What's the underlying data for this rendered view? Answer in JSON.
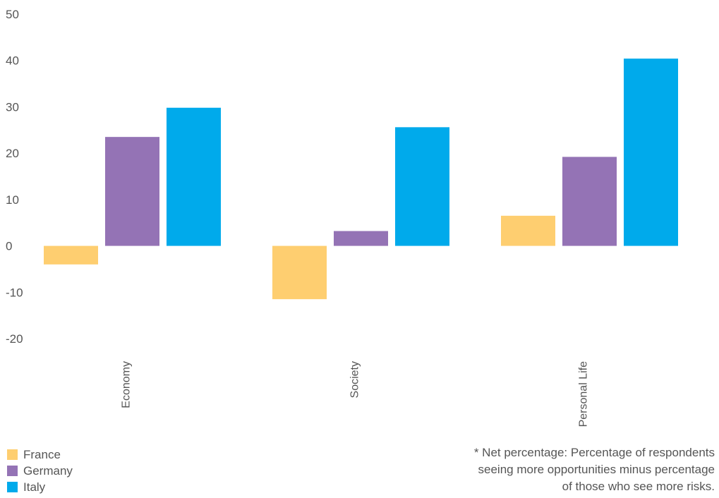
{
  "chart_data": {
    "type": "bar",
    "categories": [
      "Economy",
      "Society",
      "Personal Life"
    ],
    "series": [
      {
        "name": "France",
        "values": [
          -4,
          -11.5,
          6.5
        ],
        "color": "#FECE70"
      },
      {
        "name": "Germany",
        "values": [
          23.5,
          3.2,
          19.2
        ],
        "color": "#9473B5"
      },
      {
        "name": "Italy",
        "values": [
          29.8,
          25.6,
          40.4
        ],
        "color": "#00AAEB"
      }
    ],
    "yticks": [
      50,
      40,
      30,
      20,
      10,
      0,
      -10,
      -20
    ],
    "ylim": [
      -20,
      50
    ],
    "grid": false,
    "legend_position": "bottom-left"
  },
  "footnote": {
    "lines": [
      "* Net percentage: Percentage of respondents",
      "seeing more opportunities minus percentage",
      "of those who see more risks."
    ]
  }
}
